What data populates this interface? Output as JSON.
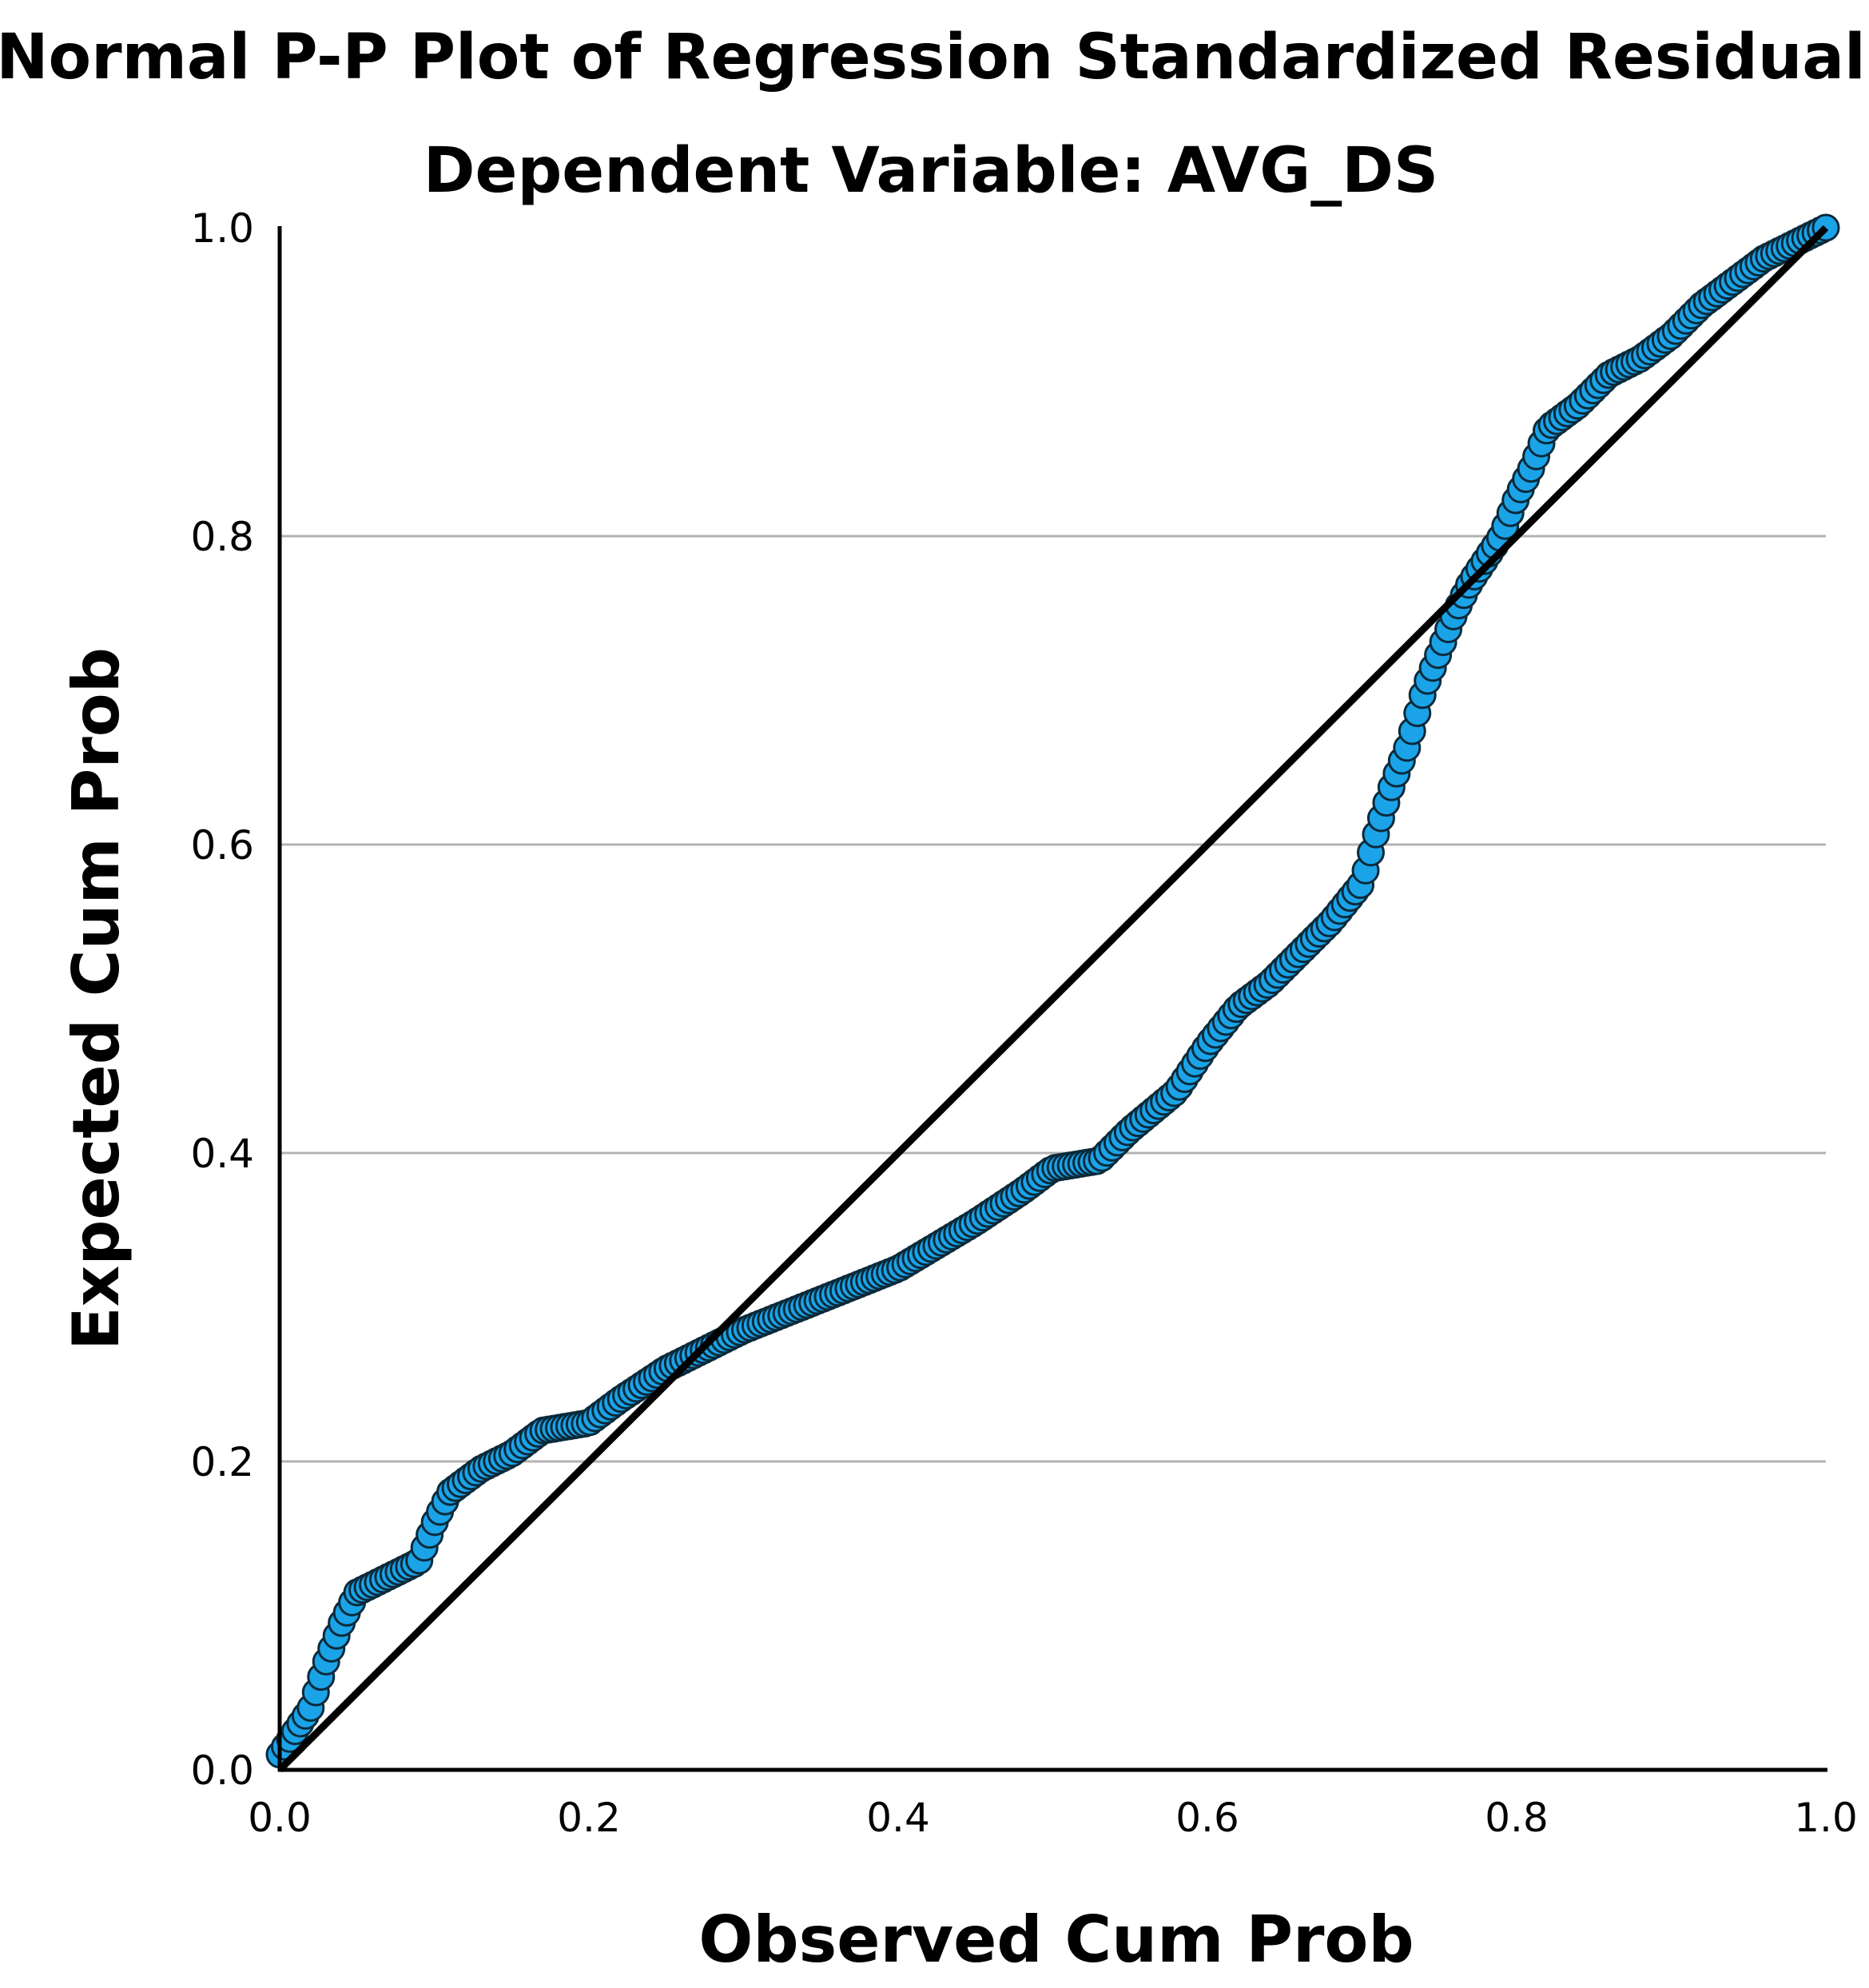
{
  "chart_data": {
    "type": "scatter",
    "title": "Normal P-P Plot of Regression Standardized Residual",
    "subtitle": "Dependent Variable: AVG_DS",
    "xlabel": "Observed Cum Prob",
    "ylabel": "Expected Cum Prob",
    "xlim": [
      0.0,
      1.0
    ],
    "ylim": [
      0.0,
      1.0
    ],
    "x_ticks": [
      "0.0",
      "0.2",
      "0.4",
      "0.6",
      "0.8",
      "1.0"
    ],
    "y_ticks": [
      "0.0",
      "0.2",
      "0.4",
      "0.6",
      "0.8",
      "1.0"
    ],
    "gridlines_y": [
      0.2,
      0.4,
      0.6,
      0.8
    ],
    "reference_line": {
      "from": [
        0.0,
        0.0
      ],
      "to": [
        1.0,
        1.0
      ]
    },
    "series": [
      {
        "name": "Standardized Residual",
        "curve": [
          [
            0.0,
            0.01
          ],
          [
            0.01,
            0.025
          ],
          [
            0.02,
            0.04
          ],
          [
            0.03,
            0.07
          ],
          [
            0.04,
            0.095
          ],
          [
            0.05,
            0.115
          ],
          [
            0.07,
            0.125
          ],
          [
            0.09,
            0.135
          ],
          [
            0.1,
            0.16
          ],
          [
            0.11,
            0.18
          ],
          [
            0.13,
            0.195
          ],
          [
            0.15,
            0.205
          ],
          [
            0.17,
            0.22
          ],
          [
            0.2,
            0.225
          ],
          [
            0.22,
            0.24
          ],
          [
            0.25,
            0.26
          ],
          [
            0.28,
            0.275
          ],
          [
            0.3,
            0.285
          ],
          [
            0.35,
            0.305
          ],
          [
            0.4,
            0.325
          ],
          [
            0.45,
            0.355
          ],
          [
            0.48,
            0.375
          ],
          [
            0.5,
            0.39
          ],
          [
            0.53,
            0.395
          ],
          [
            0.55,
            0.415
          ],
          [
            0.58,
            0.44
          ],
          [
            0.6,
            0.47
          ],
          [
            0.62,
            0.495
          ],
          [
            0.64,
            0.51
          ],
          [
            0.66,
            0.53
          ],
          [
            0.68,
            0.55
          ],
          [
            0.7,
            0.575
          ],
          [
            0.71,
            0.61
          ],
          [
            0.72,
            0.64
          ],
          [
            0.73,
            0.665
          ],
          [
            0.74,
            0.7
          ],
          [
            0.75,
            0.725
          ],
          [
            0.76,
            0.75
          ],
          [
            0.77,
            0.77
          ],
          [
            0.79,
            0.8
          ],
          [
            0.8,
            0.825
          ],
          [
            0.81,
            0.845
          ],
          [
            0.82,
            0.87
          ],
          [
            0.84,
            0.885
          ],
          [
            0.86,
            0.905
          ],
          [
            0.88,
            0.915
          ],
          [
            0.9,
            0.93
          ],
          [
            0.92,
            0.95
          ],
          [
            0.94,
            0.965
          ],
          [
            0.96,
            0.98
          ],
          [
            0.98,
            0.99
          ],
          [
            1.0,
            1.0
          ]
        ],
        "point_count": 300,
        "marker_fill": "#1ba3e8",
        "marker_stroke": "#0b2a3a"
      }
    ]
  },
  "colors": {
    "background": "#ffffff",
    "axis": "#000000",
    "grid": "#b3b3b3",
    "reference_line": "#000000"
  }
}
